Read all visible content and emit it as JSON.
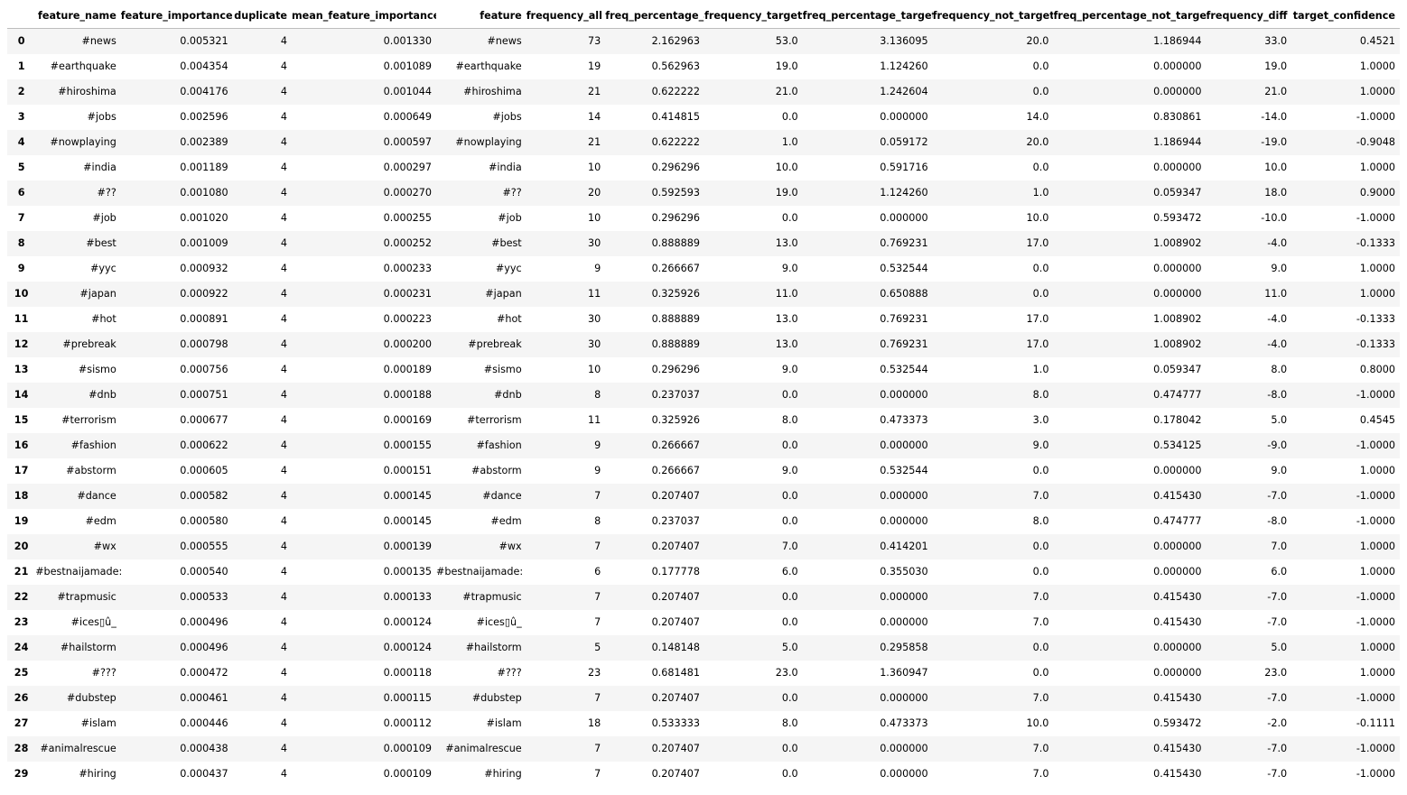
{
  "dataframe": {
    "columns": [
      "",
      "feature_name",
      "feature_importance",
      "duplicate",
      "mean_feature_importance",
      "feature",
      "frequency_all",
      "freq_percentage_all",
      "frequency_target",
      "freq_percentage_target",
      "frequency_not_target",
      "freq_percentage_not_target",
      "frequency_diff",
      "target_confidence"
    ],
    "rows": [
      [
        "0",
        "#news",
        "0.005321",
        "4",
        "0.001330",
        "#news",
        "73",
        "2.162963",
        "53.0",
        "3.136095",
        "20.0",
        "1.186944",
        "33.0",
        "0.4521"
      ],
      [
        "1",
        "#earthquake",
        "0.004354",
        "4",
        "0.001089",
        "#earthquake",
        "19",
        "0.562963",
        "19.0",
        "1.124260",
        "0.0",
        "0.000000",
        "19.0",
        "1.0000"
      ],
      [
        "2",
        "#hiroshima",
        "0.004176",
        "4",
        "0.001044",
        "#hiroshima",
        "21",
        "0.622222",
        "21.0",
        "1.242604",
        "0.0",
        "0.000000",
        "21.0",
        "1.0000"
      ],
      [
        "3",
        "#jobs",
        "0.002596",
        "4",
        "0.000649",
        "#jobs",
        "14",
        "0.414815",
        "0.0",
        "0.000000",
        "14.0",
        "0.830861",
        "-14.0",
        "-1.0000"
      ],
      [
        "4",
        "#nowplaying",
        "0.002389",
        "4",
        "0.000597",
        "#nowplaying",
        "21",
        "0.622222",
        "1.0",
        "0.059172",
        "20.0",
        "1.186944",
        "-19.0",
        "-0.9048"
      ],
      [
        "5",
        "#india",
        "0.001189",
        "4",
        "0.000297",
        "#india",
        "10",
        "0.296296",
        "10.0",
        "0.591716",
        "0.0",
        "0.000000",
        "10.0",
        "1.0000"
      ],
      [
        "6",
        "#??",
        "0.001080",
        "4",
        "0.000270",
        "#??",
        "20",
        "0.592593",
        "19.0",
        "1.124260",
        "1.0",
        "0.059347",
        "18.0",
        "0.9000"
      ],
      [
        "7",
        "#job",
        "0.001020",
        "4",
        "0.000255",
        "#job",
        "10",
        "0.296296",
        "0.0",
        "0.000000",
        "10.0",
        "0.593472",
        "-10.0",
        "-1.0000"
      ],
      [
        "8",
        "#best",
        "0.001009",
        "4",
        "0.000252",
        "#best",
        "30",
        "0.888889",
        "13.0",
        "0.769231",
        "17.0",
        "1.008902",
        "-4.0",
        "-0.1333"
      ],
      [
        "9",
        "#yyc",
        "0.000932",
        "4",
        "0.000233",
        "#yyc",
        "9",
        "0.266667",
        "9.0",
        "0.532544",
        "0.0",
        "0.000000",
        "9.0",
        "1.0000"
      ],
      [
        "10",
        "#japan",
        "0.000922",
        "4",
        "0.000231",
        "#japan",
        "11",
        "0.325926",
        "11.0",
        "0.650888",
        "0.0",
        "0.000000",
        "11.0",
        "1.0000"
      ],
      [
        "11",
        "#hot",
        "0.000891",
        "4",
        "0.000223",
        "#hot",
        "30",
        "0.888889",
        "13.0",
        "0.769231",
        "17.0",
        "1.008902",
        "-4.0",
        "-0.1333"
      ],
      [
        "12",
        "#prebreak",
        "0.000798",
        "4",
        "0.000200",
        "#prebreak",
        "30",
        "0.888889",
        "13.0",
        "0.769231",
        "17.0",
        "1.008902",
        "-4.0",
        "-0.1333"
      ],
      [
        "13",
        "#sismo",
        "0.000756",
        "4",
        "0.000189",
        "#sismo",
        "10",
        "0.296296",
        "9.0",
        "0.532544",
        "1.0",
        "0.059347",
        "8.0",
        "0.8000"
      ],
      [
        "14",
        "#dnb",
        "0.000751",
        "4",
        "0.000188",
        "#dnb",
        "8",
        "0.237037",
        "0.0",
        "0.000000",
        "8.0",
        "0.474777",
        "-8.0",
        "-1.0000"
      ],
      [
        "15",
        "#terrorism",
        "0.000677",
        "4",
        "0.000169",
        "#terrorism",
        "11",
        "0.325926",
        "8.0",
        "0.473373",
        "3.0",
        "0.178042",
        "5.0",
        "0.4545"
      ],
      [
        "16",
        "#fashion",
        "0.000622",
        "4",
        "0.000155",
        "#fashion",
        "9",
        "0.266667",
        "0.0",
        "0.000000",
        "9.0",
        "0.534125",
        "-9.0",
        "-1.0000"
      ],
      [
        "17",
        "#abstorm",
        "0.000605",
        "4",
        "0.000151",
        "#abstorm",
        "9",
        "0.266667",
        "9.0",
        "0.532544",
        "0.0",
        "0.000000",
        "9.0",
        "1.0000"
      ],
      [
        "18",
        "#dance",
        "0.000582",
        "4",
        "0.000145",
        "#dance",
        "7",
        "0.207407",
        "0.0",
        "0.000000",
        "7.0",
        "0.415430",
        "-7.0",
        "-1.0000"
      ],
      [
        "19",
        "#edm",
        "0.000580",
        "4",
        "0.000145",
        "#edm",
        "8",
        "0.237037",
        "0.0",
        "0.000000",
        "8.0",
        "0.474777",
        "-8.0",
        "-1.0000"
      ],
      [
        "20",
        "#wx",
        "0.000555",
        "4",
        "0.000139",
        "#wx",
        "7",
        "0.207407",
        "7.0",
        "0.414201",
        "0.0",
        "0.000000",
        "7.0",
        "1.0000"
      ],
      [
        "21",
        "#bestnaijamade:",
        "0.000540",
        "4",
        "0.000135",
        "#bestnaijamade:",
        "6",
        "0.177778",
        "6.0",
        "0.355030",
        "0.0",
        "0.000000",
        "6.0",
        "1.0000"
      ],
      [
        "22",
        "#trapmusic",
        "0.000533",
        "4",
        "0.000133",
        "#trapmusic",
        "7",
        "0.207407",
        "0.0",
        "0.000000",
        "7.0",
        "0.415430",
        "-7.0",
        "-1.0000"
      ],
      [
        "23",
        "#ices▯û_",
        "0.000496",
        "4",
        "0.000124",
        "#ices▯û_",
        "7",
        "0.207407",
        "0.0",
        "0.000000",
        "7.0",
        "0.415430",
        "-7.0",
        "-1.0000"
      ],
      [
        "24",
        "#hailstorm",
        "0.000496",
        "4",
        "0.000124",
        "#hailstorm",
        "5",
        "0.148148",
        "5.0",
        "0.295858",
        "0.0",
        "0.000000",
        "5.0",
        "1.0000"
      ],
      [
        "25",
        "#???",
        "0.000472",
        "4",
        "0.000118",
        "#???",
        "23",
        "0.681481",
        "23.0",
        "1.360947",
        "0.0",
        "0.000000",
        "23.0",
        "1.0000"
      ],
      [
        "26",
        "#dubstep",
        "0.000461",
        "4",
        "0.000115",
        "#dubstep",
        "7",
        "0.207407",
        "0.0",
        "0.000000",
        "7.0",
        "0.415430",
        "-7.0",
        "-1.0000"
      ],
      [
        "27",
        "#islam",
        "0.000446",
        "4",
        "0.000112",
        "#islam",
        "18",
        "0.533333",
        "8.0",
        "0.473373",
        "10.0",
        "0.593472",
        "-2.0",
        "-0.1111"
      ],
      [
        "28",
        "#animalrescue",
        "0.000438",
        "4",
        "0.000109",
        "#animalrescue",
        "7",
        "0.207407",
        "0.0",
        "0.000000",
        "7.0",
        "0.415430",
        "-7.0",
        "-1.0000"
      ],
      [
        "29",
        "#hiring",
        "0.000437",
        "4",
        "0.000109",
        "#hiring",
        "7",
        "0.207407",
        "0.0",
        "0.000000",
        "7.0",
        "0.415430",
        "-7.0",
        "-1.0000"
      ]
    ]
  }
}
